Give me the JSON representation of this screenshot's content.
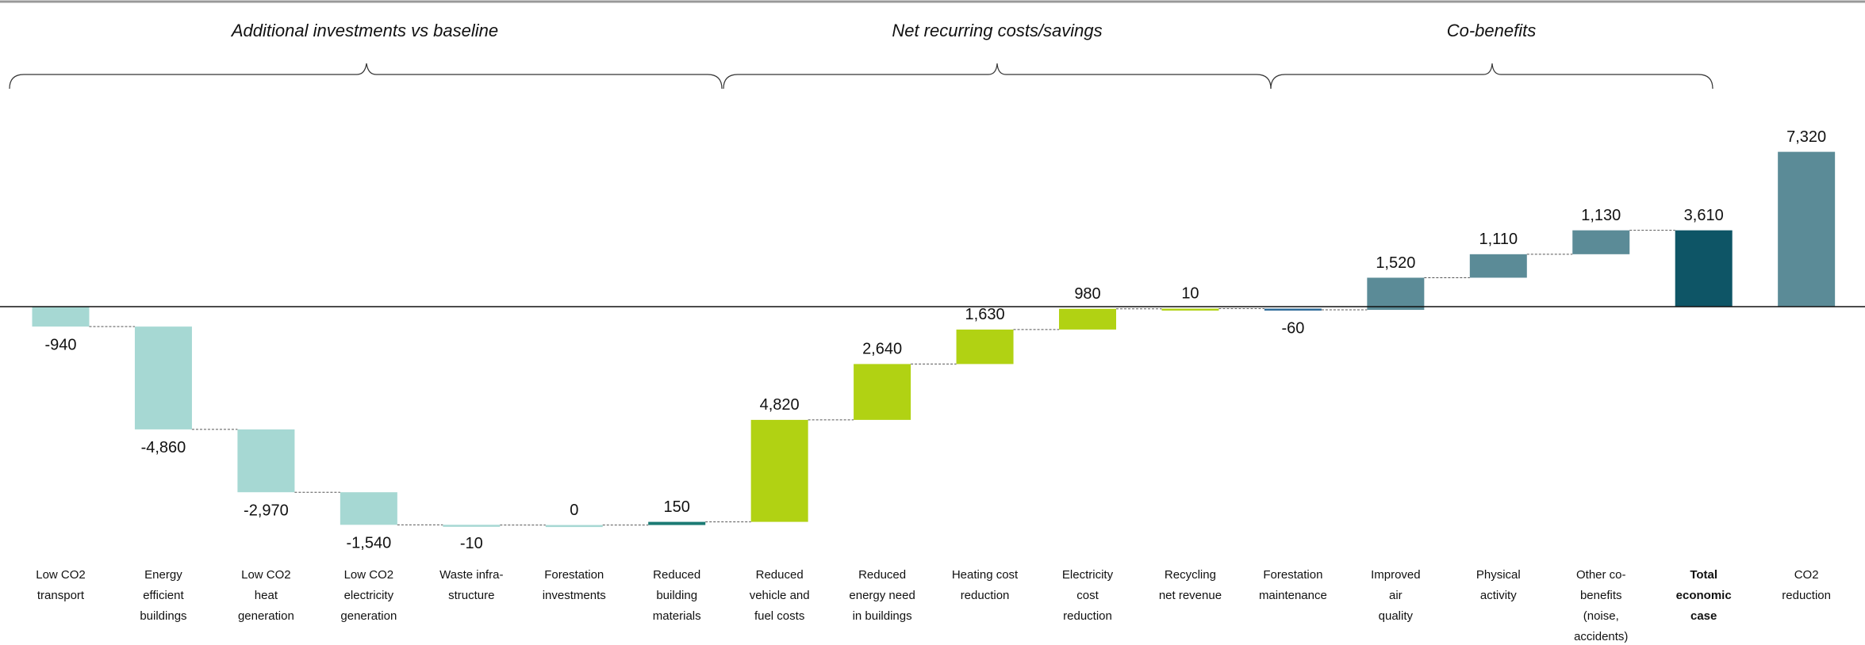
{
  "chart_data": {
    "type": "waterfall",
    "groups": [
      "Additional investments vs baseline",
      "Net recurring costs/savings",
      "Co-benefits"
    ],
    "categories": [
      [
        "Low CO2",
        "transport"
      ],
      [
        "Energy",
        "efficient",
        "buildings"
      ],
      [
        "Low CO2",
        "heat",
        "generation"
      ],
      [
        "Low CO2",
        "electricity",
        "generation"
      ],
      [
        "Waste infra-",
        "structure"
      ],
      [
        "Forestation",
        "investments"
      ],
      [
        "Reduced",
        "building",
        "materials"
      ],
      [
        "Reduced",
        "vehicle and",
        "fuel costs"
      ],
      [
        "Reduced",
        "energy need",
        "in buildings"
      ],
      [
        "Heating cost",
        "reduction"
      ],
      [
        "Electricity",
        "cost",
        "reduction"
      ],
      [
        "Recycling",
        "net revenue"
      ],
      [
        "Forestation",
        "maintenance"
      ],
      [
        "Improved",
        "air",
        "quality"
      ],
      [
        "Physical",
        "activity"
      ],
      [
        "Other co-",
        "benefits",
        "(noise,",
        "accidents)"
      ],
      [
        "Total",
        "economic",
        "case"
      ],
      [
        "CO2",
        "reduction"
      ]
    ],
    "values": [
      -940,
      -4860,
      -2970,
      -1540,
      -10,
      0,
      150,
      4820,
      2640,
      1630,
      980,
      10,
      -60,
      1520,
      1110,
      1130,
      3610,
      7320
    ],
    "value_labels": [
      "-940",
      "-4,860",
      "-2,970",
      "-1,540",
      "-10",
      "0",
      "150",
      "4,820",
      "2,640",
      "1,630",
      "980",
      "10",
      "-60",
      "1,520",
      "1,110",
      "1,130",
      "3,610",
      "7,320"
    ],
    "measures": [
      "relative",
      "relative",
      "relative",
      "relative",
      "relative",
      "relative",
      "relative",
      "relative",
      "relative",
      "relative",
      "relative",
      "relative",
      "relative",
      "relative",
      "relative",
      "relative",
      "total",
      "absolute"
    ],
    "colors": [
      "#a6d8d3",
      "#a6d8d3",
      "#a6d8d3",
      "#a6d8d3",
      "#a6d8d3",
      "#a6d8d3",
      "#1b7b74",
      "#b1d213",
      "#b1d213",
      "#b1d213",
      "#b1d213",
      "#b1d213",
      "#2c6a97",
      "#5b8b97",
      "#5b8b97",
      "#5b8b97",
      "#0e5566",
      "#5b8b97"
    ],
    "ylim": [
      -10500,
      7500
    ]
  }
}
